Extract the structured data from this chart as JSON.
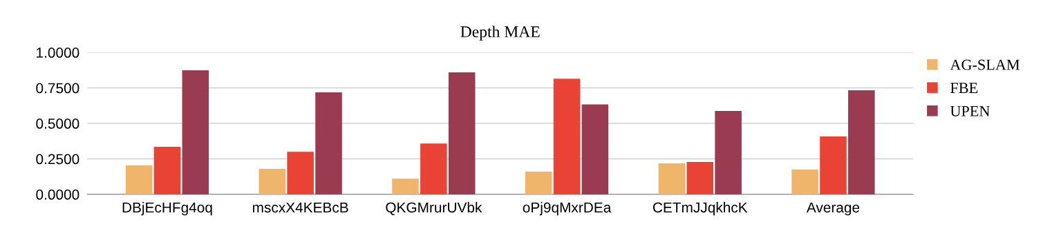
{
  "chart_data": {
    "type": "bar",
    "title": "Depth MAE",
    "categories": [
      "DBjEcHFg4oq",
      "mscxX4KEBcB",
      "QKGMrurUVbk",
      "oPj9qMxrDEa",
      "CETmJJqkhcK",
      "Average"
    ],
    "series": [
      {
        "name": "AG-SLAM",
        "color": "#efb66b",
        "values": [
          0.204,
          0.18,
          0.11,
          0.16,
          0.218,
          0.175
        ]
      },
      {
        "name": "FBE",
        "color": "#e94335",
        "values": [
          0.335,
          0.3,
          0.358,
          0.815,
          0.228,
          0.408
        ]
      },
      {
        "name": "UPEN",
        "color": "#9a3b52",
        "values": [
          0.874,
          0.718,
          0.859,
          0.634,
          0.587,
          0.733
        ]
      }
    ],
    "ylim": [
      0,
      1.0
    ],
    "yticks": [
      {
        "value": 0,
        "label": "0.0000"
      },
      {
        "value": 0.25,
        "label": "0.2500"
      },
      {
        "value": 0.5,
        "label": "0.5000"
      },
      {
        "value": 0.75,
        "label": "0.7500"
      },
      {
        "value": 1.0,
        "label": "1.0000"
      }
    ],
    "grid": "y",
    "legend": "top right"
  }
}
